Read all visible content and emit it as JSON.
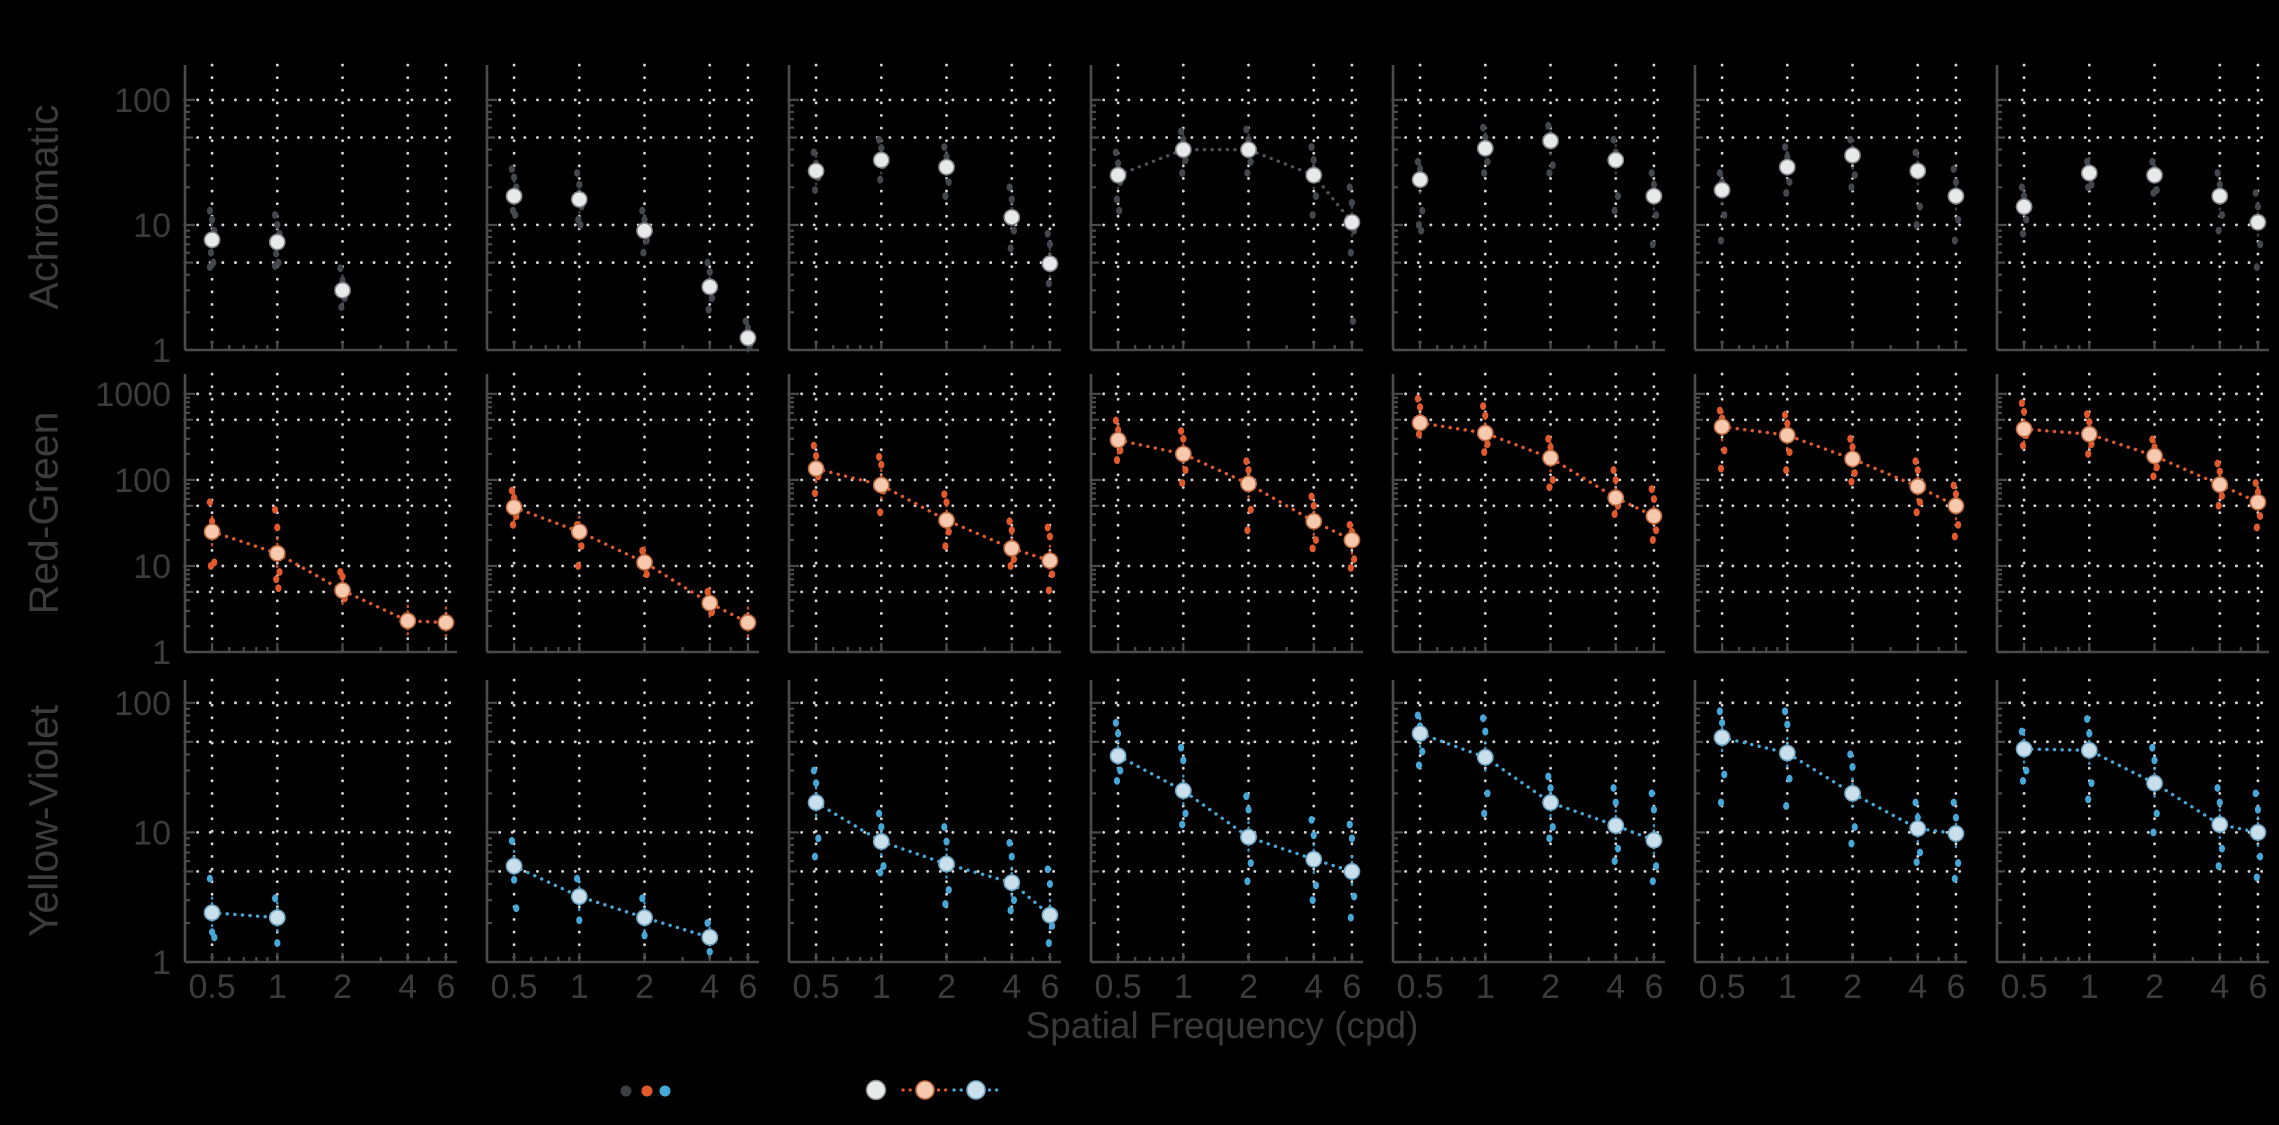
{
  "chart_data": {
    "type": "scatter",
    "title": "",
    "xlabel": "Spatial Frequency (cpd)",
    "x_scale": "log",
    "y_scale": "log",
    "grid": "dotted",
    "legend_position": "bottom",
    "columns": 7,
    "x_ticks": [
      0.5,
      1,
      2,
      4,
      6
    ],
    "x_tick_labels": [
      "0.5",
      "1",
      "2",
      "4",
      "6"
    ],
    "x_minor_ticks": [
      0.6,
      0.7,
      0.8,
      0.9,
      3,
      5
    ],
    "x_range": [
      0.375,
      6.75
    ],
    "rows": [
      {
        "label": "Achromatic",
        "y_ticks": [
          1,
          10,
          100
        ],
        "y_range": [
          1,
          190
        ],
        "grid_y": [
          5,
          10,
          50,
          100
        ],
        "scatter_color": "#44474b",
        "mean_fill": "#e8e9e9",
        "mean_edge": "#85888b",
        "line_color": "#505356",
        "panels": [
          {
            "line": false,
            "means": [
              7.6,
              7.3,
              3.0,
              null,
              null
            ],
            "scatter": [
              [
                13,
                11,
                9,
                6,
                5,
                4.6
              ],
              [
                12,
                10,
                8.5,
                5.9,
                5,
                4.7
              ],
              [
                4.5,
                3.6,
                2.6,
                2.2
              ],
              [],
              []
            ]
          },
          {
            "line": false,
            "means": [
              17,
              16,
              9,
              3.2,
              1.25
            ],
            "scatter": [
              [
                28,
                24,
                20,
                13,
                12
              ],
              [
                26,
                21,
                14,
                11,
                10
              ],
              [
                13,
                11,
                7.5,
                6
              ],
              [
                5,
                4.2,
                2.6,
                2.1
              ],
              [
                1.7,
                1.5,
                1.1
              ]
            ]
          },
          {
            "line": false,
            "means": [
              27,
              33,
              29,
              11.5,
              4.9
            ],
            "scatter": [
              [
                38,
                31,
                24,
                19
              ],
              [
                48,
                41,
                30,
                23
              ],
              [
                42,
                35,
                22,
                17
              ],
              [
                20,
                16,
                9,
                6.5
              ],
              [
                8.5,
                7,
                5,
                3.4
              ]
            ]
          },
          {
            "line": true,
            "means": [
              25,
              40,
              40,
              25,
              10.5
            ],
            "scatter": [
              [
                38,
                31,
                22,
                16,
                13
              ],
              [
                56,
                48,
                33,
                26
              ],
              [
                58,
                48,
                32,
                26
              ],
              [
                42,
                33,
                17,
                12
              ],
              [
                20,
                15,
                9,
                6,
                1.7
              ]
            ]
          },
          {
            "line": false,
            "means": [
              23,
              41,
              47,
              33,
              17
            ],
            "scatter": [
              [
                32,
                28,
                13,
                10,
                9
              ],
              [
                60,
                50,
                32,
                26
              ],
              [
                62,
                52,
                30,
                26
              ],
              [
                48,
                38,
                17,
                13
              ],
              [
                26,
                21,
                12,
                7
              ]
            ]
          },
          {
            "line": false,
            "means": [
              19,
              29,
              36,
              27,
              17
            ],
            "scatter": [
              [
                26,
                22,
                12,
                7.5
              ],
              [
                42,
                35,
                22,
                18
              ],
              [
                48,
                40,
                25,
                20
              ],
              [
                38,
                30,
                14,
                10
              ],
              [
                28,
                22,
                11,
                7.5
              ]
            ]
          },
          {
            "line": false,
            "means": [
              14,
              26,
              25,
              17,
              10.5
            ],
            "scatter": [
              [
                20,
                17,
                11,
                8.5
              ],
              [
                32,
                28,
                21,
                20
              ],
              [
                32,
                28,
                19,
                18
              ],
              [
                26,
                21,
                12,
                9
              ],
              [
                18,
                14,
                7,
                4.6
              ]
            ]
          }
        ]
      },
      {
        "label": "Red-Green",
        "y_ticks": [
          1,
          10,
          100,
          1000
        ],
        "y_range": [
          1,
          1700
        ],
        "grid_y": [
          5,
          10,
          50,
          100,
          500,
          1000
        ],
        "scatter_color": "#e2592c",
        "mean_fill": "#f6c9ae",
        "mean_edge": "#c06a3e",
        "line_color": "#e2592c",
        "panels": [
          {
            "line": true,
            "means": [
              25,
              14,
              5.2,
              2.3,
              2.2
            ],
            "scatter": [
              [
                55,
                33,
                11,
                10
              ],
              [
                45,
                28,
                8.5,
                7,
                5.5
              ],
              [
                8.5,
                7.5,
                4.2
              ],
              [
                2.6,
                2.0
              ],
              [
                2.4,
                2.0
              ]
            ]
          },
          {
            "line": true,
            "means": [
              48,
              25,
              11,
              3.7,
              2.2
            ],
            "scatter": [
              [
                75,
                62,
                38,
                30
              ],
              [
                30,
                26,
                17,
                10
              ],
              [
                15,
                12,
                8
              ],
              [
                5,
                4.1,
                2.9
              ],
              [
                2.5,
                2.1
              ]
            ]
          },
          {
            "line": true,
            "means": [
              135,
              87,
              34,
              16,
              11.5
            ],
            "scatter": [
              [
                250,
                190,
                110,
                70
              ],
              [
                185,
                150,
                75,
                42
              ],
              [
                68,
                55,
                25,
                17
              ],
              [
                33,
                26,
                12,
                10
              ],
              [
                28,
                22,
                8,
                5.2
              ]
            ]
          },
          {
            "line": true,
            "means": [
              290,
              200,
              90,
              33,
              20
            ],
            "scatter": [
              [
                490,
                380,
                220,
                170
              ],
              [
                370,
                300,
                130,
                92
              ],
              [
                165,
                130,
                45,
                26
              ],
              [
                64,
                50,
                20,
                16
              ],
              [
                30,
                25,
                12,
                9.5
              ]
            ]
          },
          {
            "line": true,
            "means": [
              460,
              350,
              180,
              62,
              38
            ],
            "scatter": [
              [
                880,
                700,
                430,
                340
              ],
              [
                720,
                560,
                260,
                210
              ],
              [
                300,
                240,
                100,
                82
              ],
              [
                130,
                100,
                50,
                40
              ],
              [
                78,
                60,
                26,
                20
              ]
            ]
          },
          {
            "line": true,
            "means": [
              415,
              330,
              175,
              84,
              50
            ],
            "scatter": [
              [
                640,
                520,
                220,
                135
              ],
              [
                570,
                450,
                210,
                130
              ],
              [
                300,
                240,
                120,
                95
              ],
              [
                165,
                130,
                55,
                42
              ],
              [
                86,
                68,
                30,
                22
              ]
            ]
          },
          {
            "line": true,
            "means": [
              390,
              340,
              190,
              88,
              55
            ],
            "scatter": [
              [
                780,
                620,
                330,
                250
              ],
              [
                580,
                470,
                260,
                200
              ],
              [
                295,
                240,
                140,
                110
              ],
              [
                155,
                125,
                65,
                50
              ],
              [
                92,
                72,
                38,
                28
              ]
            ]
          }
        ]
      },
      {
        "label": "Yellow-Violet",
        "y_ticks": [
          1,
          10,
          100
        ],
        "y_range": [
          1,
          150
        ],
        "grid_y": [
          5,
          10,
          50,
          100
        ],
        "scatter_color": "#45a8d8",
        "mean_fill": "#cadfec",
        "mean_edge": "#6fa6c4",
        "line_color": "#45a8d8",
        "panels": [
          {
            "line": true,
            "means": [
              2.4,
              2.2,
              null,
              null,
              null
            ],
            "scatter": [
              [
                4.4,
                1.7,
                1.55
              ],
              [
                3.1,
                1.4
              ],
              [],
              [],
              []
            ]
          },
          {
            "line": true,
            "means": [
              5.5,
              3.2,
              2.2,
              1.55,
              null
            ],
            "scatter": [
              [
                8.6,
                4.3,
                2.6
              ],
              [
                4.4,
                2.1
              ],
              [
                3.1,
                1.6
              ],
              [
                2.0,
                1.2
              ],
              []
            ]
          },
          {
            "line": true,
            "means": [
              17,
              8.5,
              5.7,
              4.1,
              2.3
            ],
            "scatter": [
              [
                30,
                24,
                9,
                6.5
              ],
              [
                14,
                11,
                5.5,
                4.9
              ],
              [
                11,
                8.5,
                3.6,
                2.8
              ],
              [
                8.3,
                6.5,
                3.0,
                2.5
              ],
              [
                5.2,
                4.0,
                1.9,
                1.4
              ]
            ]
          },
          {
            "line": true,
            "means": [
              39,
              21,
              9.2,
              6.2,
              5.0
            ],
            "scatter": [
              [
                70,
                58,
                30,
                25
              ],
              [
                45,
                36,
                14,
                11.5
              ],
              [
                19,
                15,
                5.8,
                4.2
              ],
              [
                12.5,
                9.5,
                3.9,
                3.0
              ],
              [
                11.5,
                9,
                3.2,
                2.2
              ]
            ]
          },
          {
            "line": true,
            "means": [
              58,
              38,
              17,
              11.3,
              8.7
            ],
            "scatter": [
              [
                80,
                66,
                42,
                33
              ],
              [
                76,
                60,
                20,
                14
              ],
              [
                27,
                22,
                11,
                9
              ],
              [
                22,
                17,
                7.5,
                6
              ],
              [
                20,
                15,
                5.5,
                4.2
              ]
            ]
          },
          {
            "line": true,
            "means": [
              54,
              41,
              20,
              10.7,
              9.8
            ],
            "scatter": [
              [
                86,
                70,
                28,
                17
              ],
              [
                86,
                68,
                26,
                16
              ],
              [
                40,
                32,
                11,
                8.2
              ],
              [
                17,
                13,
                7,
                5.9
              ],
              [
                17,
                13,
                5.8,
                4.4
              ]
            ]
          },
          {
            "line": true,
            "means": [
              44,
              43,
              24,
              11.5,
              10
            ],
            "scatter": [
              [
                60,
                48,
                30,
                25
              ],
              [
                75,
                58,
                24,
                18
              ],
              [
                45,
                36,
                14,
                10
              ],
              [
                22,
                17,
                7.5,
                5.5
              ],
              [
                20,
                15,
                6.5,
                4.5
              ]
            ]
          }
        ]
      }
    ]
  },
  "legend": {
    "colors": {
      "individual_achromatic": "#3b3e42",
      "individual_red_green": "#e2592c",
      "individual_yellow_violet": "#45a8d8",
      "mean_achromatic": "#e8e9e9",
      "mean_red_green": "#f6c9ae",
      "mean_yellow_violet": "#cadfec",
      "red_green_line": "#e2592c",
      "yellow_violet_line": "#45a8d8"
    }
  }
}
